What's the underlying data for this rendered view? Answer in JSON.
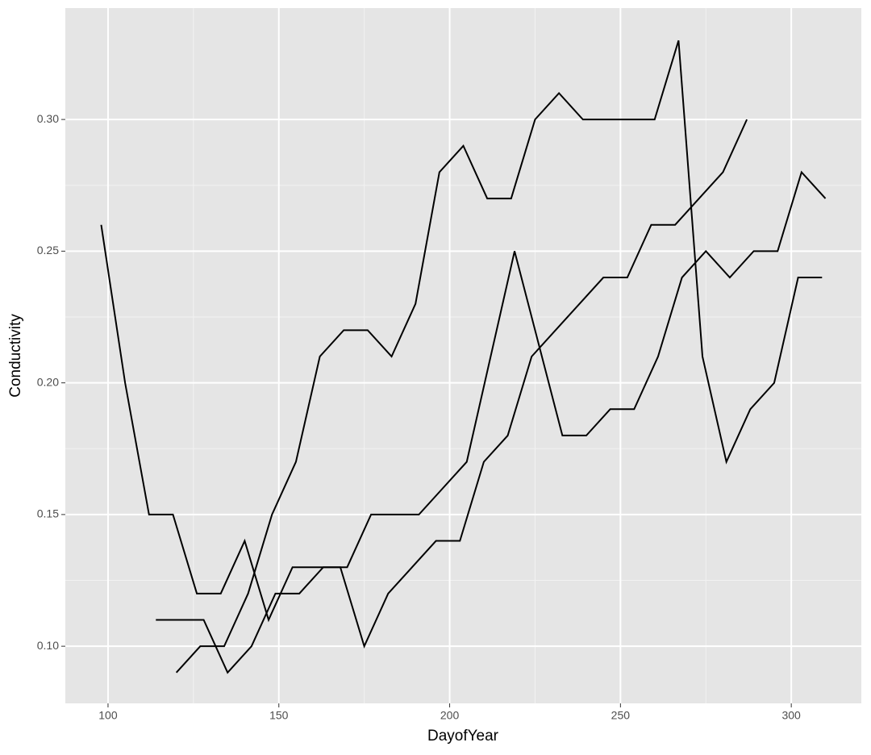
{
  "chart_data": {
    "type": "line",
    "xlabel": "DayofYear",
    "ylabel": "Conductivity",
    "xlim": [
      87.5,
      320.5
    ],
    "ylim": [
      0.0783,
      0.3423
    ],
    "xticks": [
      100,
      150,
      200,
      250,
      300
    ],
    "yticks": [
      {
        "value": 0.1,
        "label": "0.10"
      },
      {
        "value": 0.15,
        "label": "0.15"
      },
      {
        "value": 0.2,
        "label": "0.20"
      },
      {
        "value": 0.25,
        "label": "0.25"
      },
      {
        "value": 0.3,
        "label": "0.30"
      }
    ],
    "grid": true,
    "series": [
      {
        "color": "#000000",
        "x": [
          98,
          105,
          112,
          119,
          126,
          133,
          140,
          147,
          154,
          161,
          168,
          175,
          182,
          189,
          196,
          203,
          210,
          217,
          224,
          231,
          238,
          245,
          252,
          259,
          266,
          273,
          280,
          287
        ],
        "values": [
          0.26,
          0.2,
          0.15,
          0.15,
          0.12,
          0.12,
          0.14,
          0.11,
          0.13,
          0.13,
          0.13,
          0.1,
          0.12,
          0.13,
          0.14,
          0.14,
          0.17,
          0.18,
          0.21,
          0.22,
          0.23,
          0.24,
          0.24,
          0.26,
          0.26,
          0.27,
          0.28,
          0.3
        ]
      },
      {
        "color": "#000000",
        "x": [
          120,
          127,
          134,
          141,
          148,
          155,
          162,
          169,
          176,
          183,
          190,
          197,
          204,
          211,
          218,
          225,
          232,
          239,
          246,
          253,
          260,
          267,
          274,
          281,
          288,
          295,
          302,
          309
        ],
        "values": [
          0.09,
          0.1,
          0.1,
          0.12,
          0.15,
          0.17,
          0.21,
          0.22,
          0.22,
          0.21,
          0.23,
          0.28,
          0.29,
          0.27,
          0.27,
          0.3,
          0.31,
          0.3,
          0.3,
          0.3,
          0.3,
          0.33,
          0.21,
          0.17,
          0.19,
          0.2,
          0.24,
          0.24
        ]
      },
      {
        "color": "#000000",
        "x": [
          114,
          121,
          128,
          135,
          142,
          149,
          156,
          163,
          170,
          177,
          184,
          191,
          198,
          205,
          212,
          219,
          226,
          233,
          240,
          247,
          254,
          261,
          268,
          275,
          282,
          289,
          296,
          303,
          310
        ],
        "values": [
          0.11,
          0.11,
          0.11,
          0.09,
          0.1,
          0.12,
          0.12,
          0.13,
          0.13,
          0.15,
          0.15,
          0.15,
          0.16,
          0.17,
          0.21,
          0.25,
          0.215,
          0.18,
          0.18,
          0.19,
          0.19,
          0.21,
          0.24,
          0.25,
          0.24,
          0.25,
          0.25,
          0.28,
          0.27
        ]
      }
    ]
  }
}
